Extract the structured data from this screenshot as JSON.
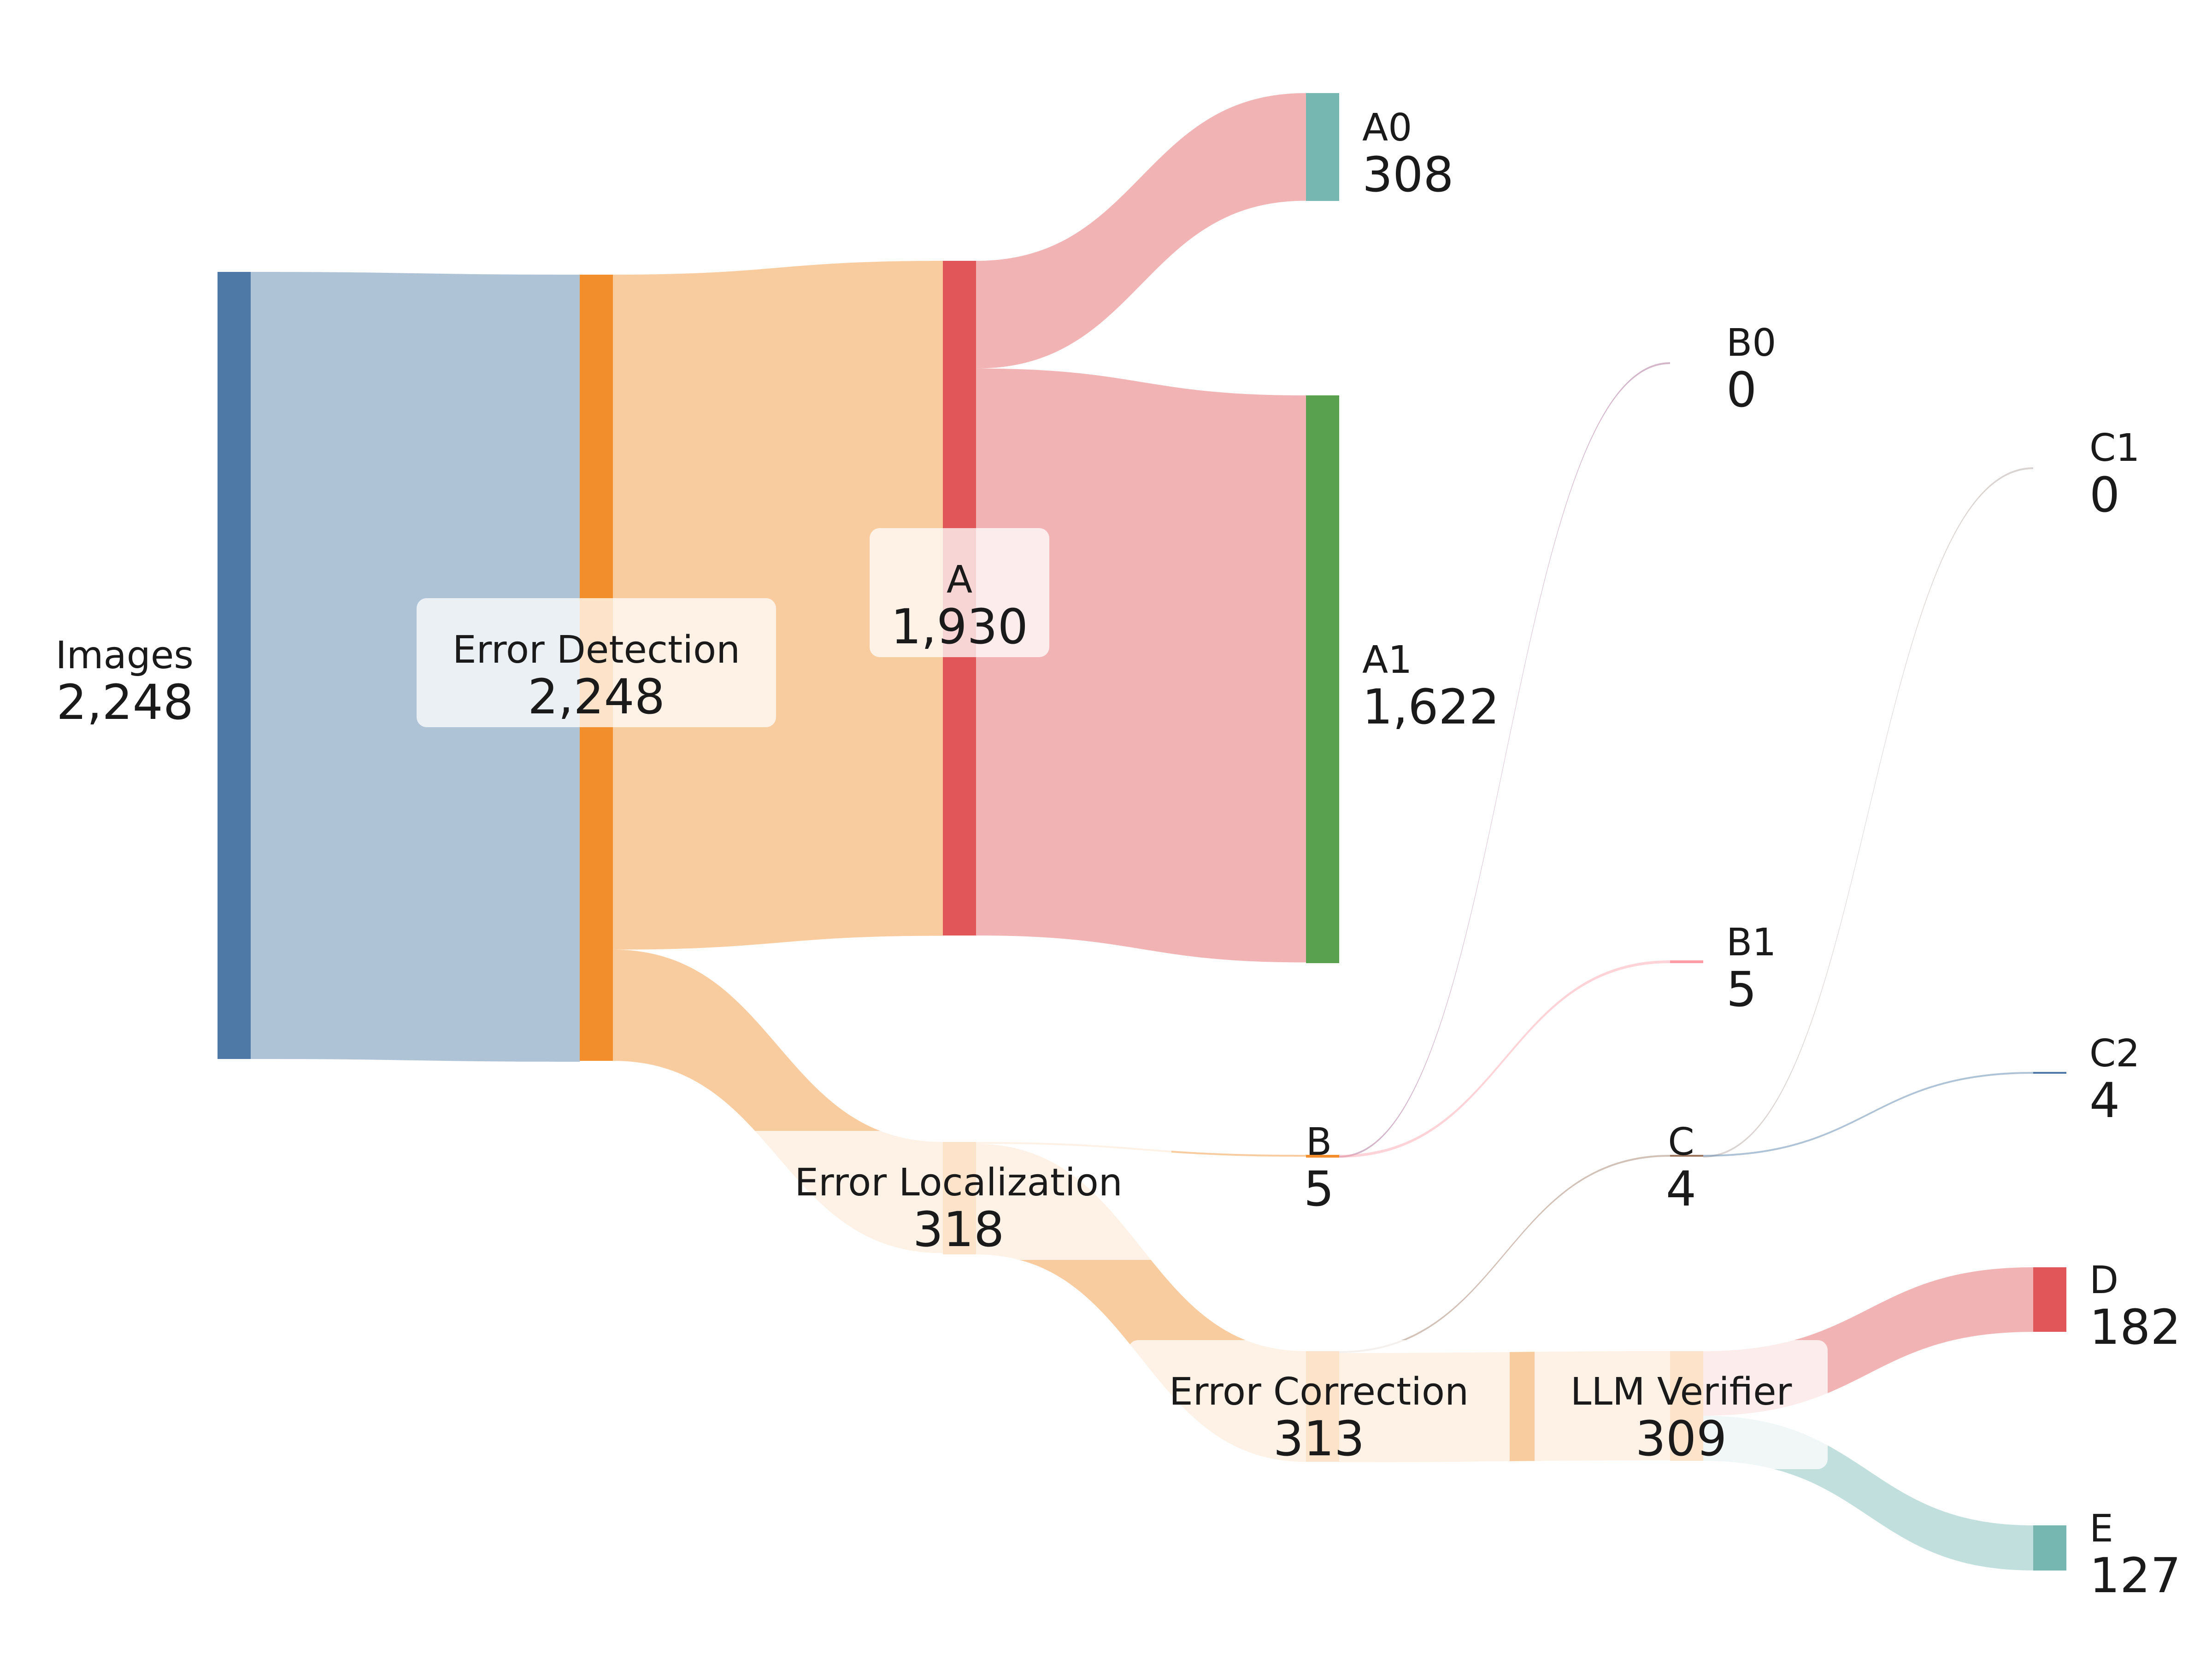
{
  "chart_data": {
    "type": "sankey",
    "nodes": [
      {
        "id": "images",
        "name": "Images",
        "value_label": "2,248",
        "value": 2248,
        "color": "#4e79a7"
      },
      {
        "id": "error_detection",
        "name": "Error Detection",
        "value_label": "2,248",
        "value": 2248,
        "color": "#f28e2b"
      },
      {
        "id": "a",
        "name": "A",
        "value_label": "1,930",
        "value": 1930,
        "color": "#e15759"
      },
      {
        "id": "a0",
        "name": "A0",
        "value_label": "308",
        "value": 308,
        "color": "#76b7b2"
      },
      {
        "id": "a1",
        "name": "A1",
        "value_label": "1,622",
        "value": 1622,
        "color": "#59a14f"
      },
      {
        "id": "b0",
        "name": "B0",
        "value_label": "0",
        "value": 0,
        "color": "#e8a3c0"
      },
      {
        "id": "b1",
        "name": "B1",
        "value_label": "5",
        "value": 5,
        "color": "#ff9da7"
      },
      {
        "id": "c1",
        "name": "C1",
        "value_label": "0",
        "value": 0,
        "color": "#bab0ac"
      },
      {
        "id": "c2",
        "name": "C2",
        "value_label": "4",
        "value": 4,
        "color": "#4e79a7"
      },
      {
        "id": "error_localization",
        "name": "Error Localization",
        "value_label": "318",
        "value": 318,
        "color": "#f28e2b"
      },
      {
        "id": "b",
        "name": "B",
        "value_label": "5",
        "value": 5,
        "color": "#f28e2b"
      },
      {
        "id": "c",
        "name": "C",
        "value_label": "4",
        "value": 4,
        "color": "#9c755f"
      },
      {
        "id": "error_correction",
        "name": "Error Correction",
        "value_label": "313",
        "value": 313,
        "color": "#f28e2b"
      },
      {
        "id": "llm_verifier",
        "name": "LLM Verifier",
        "value_label": "309",
        "value": 309,
        "color": "#f28e2b"
      },
      {
        "id": "d",
        "name": "D",
        "value_label": "182",
        "value": 182,
        "color": "#e15759"
      },
      {
        "id": "e",
        "name": "E",
        "value_label": "127",
        "value": 127,
        "color": "#76b7b2"
      }
    ],
    "links": [
      {
        "source": "images",
        "target": "error_detection",
        "value": 2248,
        "color": "#4e79a7"
      },
      {
        "source": "error_detection",
        "target": "a",
        "value": 1930,
        "color": "#f28e2b"
      },
      {
        "source": "error_detection",
        "target": "error_localization",
        "value": 318,
        "color": "#f28e2b"
      },
      {
        "source": "a",
        "target": "a0",
        "value": 308,
        "color": "#e15759"
      },
      {
        "source": "a",
        "target": "a1",
        "value": 1622,
        "color": "#e15759"
      },
      {
        "source": "error_localization",
        "target": "b",
        "value": 5,
        "color": "#f28e2b"
      },
      {
        "source": "error_localization",
        "target": "error_correction",
        "value": 313,
        "color": "#f28e2b"
      },
      {
        "source": "b",
        "target": "b0",
        "value": 0,
        "color": "#b07aa1"
      },
      {
        "source": "b",
        "target": "b1",
        "value": 5,
        "color": "#ff9da7"
      },
      {
        "source": "error_correction",
        "target": "c",
        "value": 4,
        "color": "#9c755f"
      },
      {
        "source": "error_correction",
        "target": "llm_verifier",
        "value": 309,
        "color": "#f28e2b"
      },
      {
        "source": "c",
        "target": "c1",
        "value": 0,
        "color": "#bab0ac"
      },
      {
        "source": "c",
        "target": "c2",
        "value": 4,
        "color": "#4e79a7"
      },
      {
        "source": "llm_verifier",
        "target": "d",
        "value": 182,
        "color": "#e15759"
      },
      {
        "source": "llm_verifier",
        "target": "e",
        "value": 127,
        "color": "#76b7b2"
      }
    ]
  }
}
